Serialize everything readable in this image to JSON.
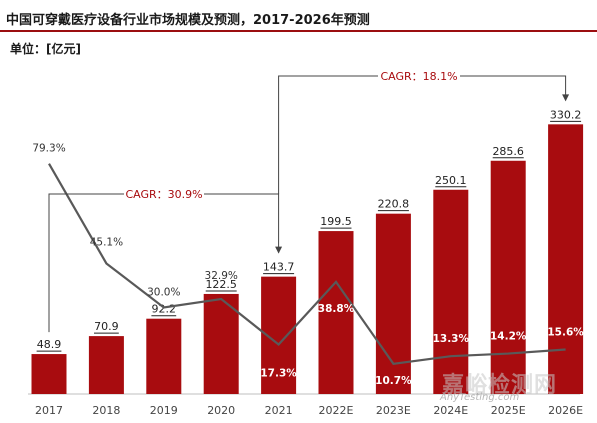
{
  "chart_data": {
    "type": "bar",
    "title": "中国可穿戴医疗设备行业市场规模及预测，2017-2026年预测",
    "unit_label": "单位：[亿元]",
    "categories": [
      "2017",
      "2018",
      "2019",
      "2020",
      "2021",
      "2022E",
      "2023E",
      "2024E",
      "2025E",
      "2026E"
    ],
    "values": [
      48.9,
      70.9,
      92.2,
      122.5,
      143.7,
      199.5,
      220.8,
      250.1,
      285.6,
      330.2
    ],
    "value_labels": [
      "48.9",
      "70.9",
      "92.2",
      "122.5",
      "143.7",
      "199.5",
      "220.8",
      "250.1",
      "285.6",
      "330.2"
    ],
    "growth_rates": [
      79.3,
      45.1,
      30.0,
      32.9,
      17.3,
      38.8,
      10.7,
      13.3,
      14.2,
      15.6
    ],
    "growth_labels": [
      "79.3%",
      "45.1%",
      "30.0%",
      "32.9%",
      "17.3%",
      "38.8%",
      "10.7%",
      "13.3%",
      "14.2%",
      "15.6%"
    ],
    "cagr_annotations": [
      {
        "label": "CAGR：30.9%",
        "from": "2017",
        "to": "2021"
      },
      {
        "label": "CAGR：18.1%",
        "from": "2021",
        "to": "2026E"
      }
    ],
    "ylim": [
      0,
      360
    ],
    "growth_ylim": [
      0,
      120
    ],
    "bar_color": "#a80c0f",
    "line_color": "#595959",
    "grid": false
  },
  "watermark": {
    "text": "嘉峪检测网",
    "sub": "AnyTesting.com"
  }
}
